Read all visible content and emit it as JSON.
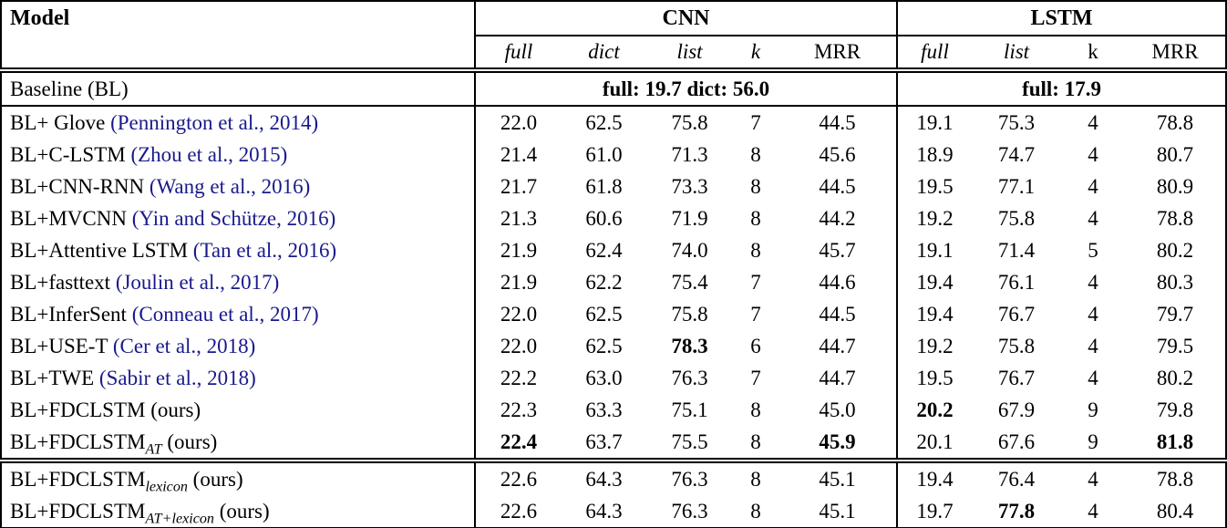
{
  "colors": {
    "citation_link": "#19198c",
    "text": "#000000",
    "background": "#ffffff"
  },
  "table": {
    "header": {
      "model": "Model",
      "cnn": "CNN",
      "lstm": "LSTM",
      "cnn_cols": [
        "full",
        "dict",
        "list",
        "k",
        "MRR"
      ],
      "lstm_cols": [
        "full",
        "list",
        "k",
        "MRR"
      ]
    },
    "baseline": {
      "model": "Baseline (BL)",
      "cnn_summary": "full: 19.7 dict: 56.0",
      "lstm_summary": "full: 17.9"
    },
    "rows": [
      {
        "model": "BL+ Glove",
        "sub": "",
        "cite": "(Pennington et al., 2014)",
        "suffix": "",
        "values": {
          "cnn_full": "22.0",
          "cnn_dict": "62.5",
          "cnn_list": "75.8",
          "cnn_k": "7",
          "cnn_mrr": "44.5",
          "lstm_full": "19.1",
          "lstm_list": "75.3",
          "lstm_k": "4",
          "lstm_mrr": "78.8"
        },
        "bold": []
      },
      {
        "model": "BL+C-LSTM",
        "sub": "",
        "cite": "(Zhou et al., 2015)",
        "suffix": "",
        "values": {
          "cnn_full": "21.4",
          "cnn_dict": "61.0",
          "cnn_list": "71.3",
          "cnn_k": "8",
          "cnn_mrr": "45.6",
          "lstm_full": "18.9",
          "lstm_list": "74.7",
          "lstm_k": "4",
          "lstm_mrr": "80.7"
        },
        "bold": []
      },
      {
        "model": "BL+CNN-RNN",
        "sub": "",
        "cite": "(Wang et al., 2016)",
        "suffix": "",
        "values": {
          "cnn_full": "21.7",
          "cnn_dict": "61.8",
          "cnn_list": "73.3",
          "cnn_k": "8",
          "cnn_mrr": "44.5",
          "lstm_full": "19.5",
          "lstm_list": "77.1",
          "lstm_k": "4",
          "lstm_mrr": "80.9"
        },
        "bold": []
      },
      {
        "model": "BL+MVCNN",
        "sub": "",
        "cite": "(Yin and Schütze, 2016)",
        "suffix": "",
        "values": {
          "cnn_full": "21.3",
          "cnn_dict": "60.6",
          "cnn_list": "71.9",
          "cnn_k": "8",
          "cnn_mrr": "44.2",
          "lstm_full": "19.2",
          "lstm_list": "75.8",
          "lstm_k": "4",
          "lstm_mrr": "78.8"
        },
        "bold": []
      },
      {
        "model": "BL+Attentive LSTM",
        "sub": "",
        "cite": "(Tan et al., 2016)",
        "suffix": "",
        "values": {
          "cnn_full": "21.9",
          "cnn_dict": "62.4",
          "cnn_list": "74.0",
          "cnn_k": "8",
          "cnn_mrr": "45.7",
          "lstm_full": "19.1",
          "lstm_list": "71.4",
          "lstm_k": "5",
          "lstm_mrr": "80.2"
        },
        "bold": []
      },
      {
        "model": "BL+fasttext",
        "sub": "",
        "cite": "(Joulin et al., 2017)",
        "suffix": "",
        "values": {
          "cnn_full": "21.9",
          "cnn_dict": "62.2",
          "cnn_list": "75.4",
          "cnn_k": "7",
          "cnn_mrr": "44.6",
          "lstm_full": "19.4",
          "lstm_list": "76.1",
          "lstm_k": "4",
          "lstm_mrr": "80.3"
        },
        "bold": []
      },
      {
        "model": "BL+InferSent",
        "sub": "",
        "cite": "(Conneau et al., 2017)",
        "suffix": "",
        "values": {
          "cnn_full": "22.0",
          "cnn_dict": "62.5",
          "cnn_list": "75.8",
          "cnn_k": "7",
          "cnn_mrr": "44.5",
          "lstm_full": "19.4",
          "lstm_list": "76.7",
          "lstm_k": "4",
          "lstm_mrr": "79.7"
        },
        "bold": []
      },
      {
        "model": "BL+USE-T",
        "sub": "",
        "cite": "(Cer et al., 2018)",
        "suffix": "",
        "values": {
          "cnn_full": "22.0",
          "cnn_dict": "62.5",
          "cnn_list": "78.3",
          "cnn_k": "6",
          "cnn_mrr": "44.7",
          "lstm_full": "19.2",
          "lstm_list": "75.8",
          "lstm_k": "4",
          "lstm_mrr": "79.5"
        },
        "bold": [
          "cnn_list"
        ]
      },
      {
        "model": "BL+TWE",
        "sub": "",
        "cite": "(Sabir et al., 2018)",
        "suffix": "",
        "values": {
          "cnn_full": "22.2",
          "cnn_dict": "63.0",
          "cnn_list": "76.3",
          "cnn_k": "7",
          "cnn_mrr": "44.7",
          "lstm_full": "19.5",
          "lstm_list": "76.7",
          "lstm_k": "4",
          "lstm_mrr": "80.2"
        },
        "bold": []
      },
      {
        "model": "BL+FDCLSTM",
        "sub": "",
        "cite": "",
        "suffix": "(ours)",
        "values": {
          "cnn_full": "22.3",
          "cnn_dict": "63.3",
          "cnn_list": "75.1",
          "cnn_k": "8",
          "cnn_mrr": "45.0",
          "lstm_full": "20.2",
          "lstm_list": "67.9",
          "lstm_k": "9",
          "lstm_mrr": "79.8"
        },
        "bold": [
          "lstm_full"
        ]
      },
      {
        "model": "BL+FDCLSTM",
        "sub": "AT",
        "cite": "",
        "suffix": "(ours)",
        "values": {
          "cnn_full": "22.4",
          "cnn_dict": "63.7",
          "cnn_list": "75.5",
          "cnn_k": "8",
          "cnn_mrr": "45.9",
          "lstm_full": "20.1",
          "lstm_list": "67.6",
          "lstm_k": "9",
          "lstm_mrr": "81.8"
        },
        "bold": [
          "cnn_full",
          "cnn_mrr",
          "lstm_mrr"
        ]
      }
    ],
    "lexicon_rows": [
      {
        "model": "BL+FDCLSTM",
        "sub": "lexicon",
        "cite": "",
        "suffix": "(ours)",
        "values": {
          "cnn_full": "22.6",
          "cnn_dict": "64.3",
          "cnn_list": "76.3",
          "cnn_k": "8",
          "cnn_mrr": "45.1",
          "lstm_full": "19.4",
          "lstm_list": "76.4",
          "lstm_k": "4",
          "lstm_mrr": "78.8"
        },
        "bold": []
      },
      {
        "model": "BL+FDCLSTM",
        "sub": "AT+lexicon",
        "cite": "",
        "suffix": "(ours)",
        "values": {
          "cnn_full": "22.6",
          "cnn_dict": "64.3",
          "cnn_list": "76.3",
          "cnn_k": "8",
          "cnn_mrr": "45.1",
          "lstm_full": "19.7",
          "lstm_list": "77.8",
          "lstm_k": "4",
          "lstm_mrr": "80.4"
        },
        "bold": [
          "lstm_list"
        ]
      }
    ]
  }
}
